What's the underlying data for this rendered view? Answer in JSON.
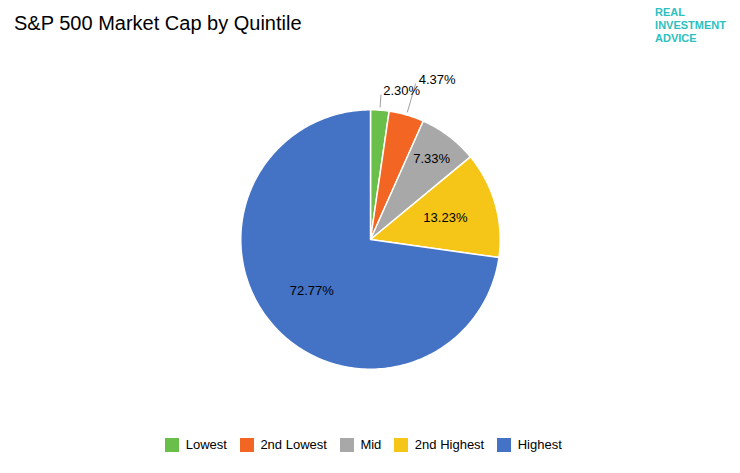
{
  "chart_data": {
    "type": "pie",
    "title": "S&P 500 Market Cap by Quintile",
    "categories": [
      "Lowest",
      "2nd Lowest",
      "Mid",
      "2nd Highest",
      "Highest"
    ],
    "values": [
      2.3,
      4.37,
      7.33,
      13.23,
      72.77
    ],
    "value_labels": [
      "2.30%",
      "4.37%",
      "7.33%",
      "13.23%",
      "72.77%"
    ],
    "colors": [
      "#6abf4b",
      "#f26522",
      "#a8a8a8",
      "#f5c518",
      "#4472c4"
    ],
    "data_labels": true,
    "legend": "bottom",
    "annotations": [
      {
        "text": "REAL",
        "color": "#2dbfbf"
      },
      {
        "text": "INVESTMENT",
        "color": "#2dbfbf"
      },
      {
        "text": "ADVICE",
        "color": "#2dbfbf"
      }
    ]
  }
}
